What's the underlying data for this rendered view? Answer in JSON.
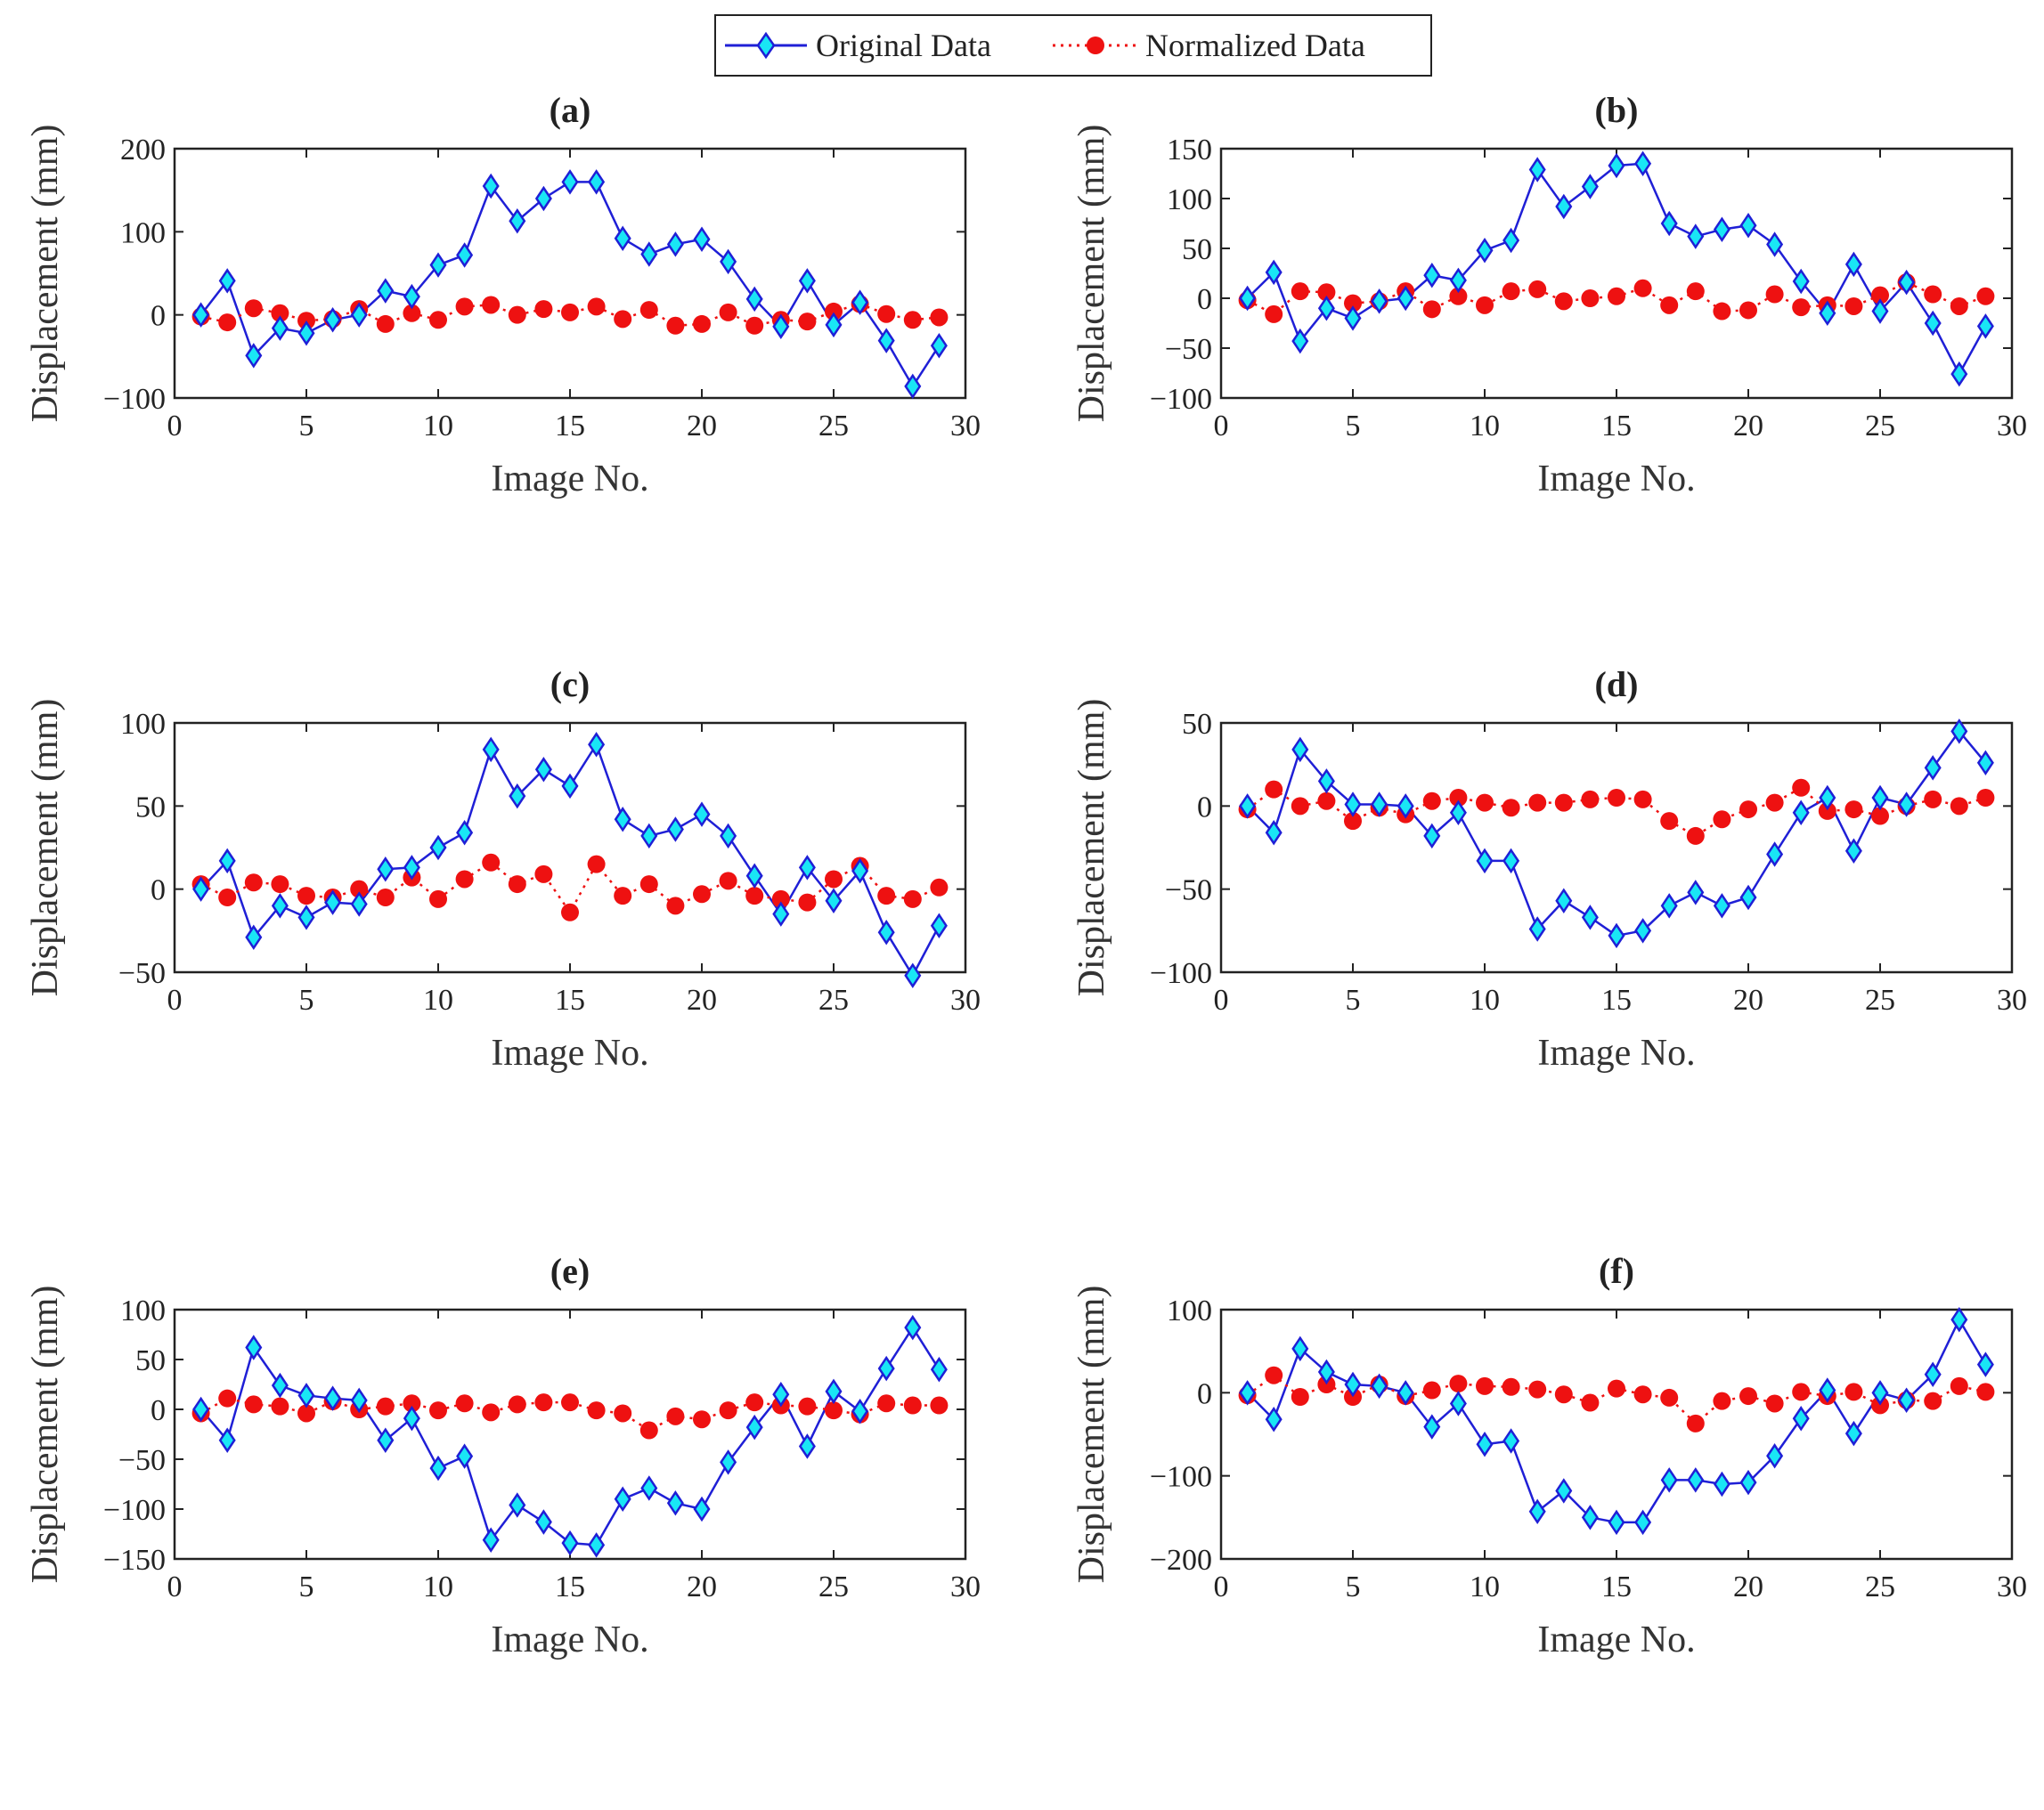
{
  "legend": {
    "original_label": "Original Data",
    "normalized_label": "Normalized Data"
  },
  "colors": {
    "original_line": "#1f1fd6",
    "original_marker_fill": "#19e6f5",
    "normalized": "#ee1111",
    "axis": "#222222"
  },
  "chart_data": [
    {
      "type": "line",
      "title": "(a)",
      "xlabel": "Image No.",
      "ylabel": "Displacement (mm)",
      "xlim": [
        0,
        30
      ],
      "ylim": [
        -100,
        200
      ],
      "xticks": [
        0,
        5,
        10,
        15,
        20,
        25,
        30
      ],
      "yticks": [
        -100,
        0,
        100,
        200
      ],
      "x": [
        1,
        2,
        3,
        4,
        5,
        6,
        7,
        8,
        9,
        10,
        11,
        12,
        13,
        14,
        15,
        16,
        17,
        18,
        19,
        20,
        21,
        22,
        23,
        24,
        25,
        26,
        27,
        28,
        29
      ],
      "series": [
        {
          "name": "Original Data",
          "values": [
            0,
            41,
            -49,
            -16,
            -22,
            -6,
            0,
            29,
            22,
            60,
            72,
            155,
            113,
            140,
            160,
            160,
            92,
            73,
            85,
            91,
            64,
            19,
            -14,
            41,
            -12,
            15,
            -31,
            -86,
            -37
          ]
        },
        {
          "name": "Normalized Data",
          "values": [
            -2,
            -9,
            8,
            2,
            -7,
            -5,
            7,
            -11,
            2,
            -6,
            10,
            12,
            0,
            7,
            3,
            10,
            -5,
            6,
            -13,
            -11,
            3,
            -13,
            -6,
            -8,
            4,
            13,
            1,
            -6,
            -3
          ]
        }
      ]
    },
    {
      "type": "line",
      "title": "(b)",
      "xlabel": "Image No.",
      "ylabel": "Displacement (mm)",
      "xlim": [
        0,
        30
      ],
      "ylim": [
        -100,
        150
      ],
      "xticks": [
        0,
        5,
        10,
        15,
        20,
        25,
        30
      ],
      "yticks": [
        -100,
        -50,
        0,
        50,
        100,
        150
      ],
      "x": [
        1,
        2,
        3,
        4,
        5,
        6,
        7,
        8,
        9,
        10,
        11,
        12,
        13,
        14,
        15,
        16,
        17,
        18,
        19,
        20,
        21,
        22,
        23,
        24,
        25,
        26,
        27,
        28,
        29
      ],
      "series": [
        {
          "name": "Original Data",
          "values": [
            0,
            26,
            -43,
            -10,
            -20,
            -3,
            0,
            23,
            18,
            48,
            58,
            129,
            92,
            112,
            133,
            135,
            75,
            62,
            69,
            73,
            54,
            17,
            -15,
            34,
            -13,
            16,
            -25,
            -76,
            -28
          ]
        },
        {
          "name": "Normalized Data",
          "values": [
            -2,
            -16,
            7,
            6,
            -5,
            -3,
            7,
            -11,
            2,
            -7,
            7,
            9,
            -3,
            0,
            2,
            10,
            -7,
            7,
            -13,
            -12,
            4,
            -9,
            -7,
            -8,
            3,
            16,
            4,
            -8,
            2
          ]
        }
      ]
    },
    {
      "type": "line",
      "title": "(c)",
      "xlabel": "Image No.",
      "ylabel": "Displacement (mm)",
      "xlim": [
        0,
        30
      ],
      "ylim": [
        -50,
        100
      ],
      "xticks": [
        0,
        5,
        10,
        15,
        20,
        25,
        30
      ],
      "yticks": [
        -50,
        0,
        50,
        100
      ],
      "x": [
        1,
        2,
        3,
        4,
        5,
        6,
        7,
        8,
        9,
        10,
        11,
        12,
        13,
        14,
        15,
        16,
        17,
        18,
        19,
        20,
        21,
        22,
        23,
        24,
        25,
        26,
        27,
        28,
        29
      ],
      "series": [
        {
          "name": "Original Data",
          "values": [
            0,
            17,
            -29,
            -10,
            -17,
            -8,
            -9,
            12,
            13,
            25,
            34,
            84,
            56,
            72,
            62,
            87,
            42,
            32,
            36,
            45,
            32,
            8,
            -15,
            13,
            -7,
            11,
            -26,
            -52,
            -22
          ]
        },
        {
          "name": "Normalized Data",
          "values": [
            3,
            -5,
            4,
            3,
            -4,
            -5,
            0,
            -5,
            7,
            -6,
            6,
            16,
            3,
            9,
            -14,
            15,
            -4,
            3,
            -10,
            -3,
            5,
            -4,
            -6,
            -8,
            6,
            14,
            -4,
            -6,
            1
          ]
        }
      ]
    },
    {
      "type": "line",
      "title": "(d)",
      "xlabel": "Image No.",
      "ylabel": "Displacement (mm)",
      "xlim": [
        0,
        30
      ],
      "ylim": [
        -100,
        50
      ],
      "xticks": [
        0,
        5,
        10,
        15,
        20,
        25,
        30
      ],
      "yticks": [
        -100,
        -50,
        0,
        50
      ],
      "x": [
        1,
        2,
        3,
        4,
        5,
        6,
        7,
        8,
        9,
        10,
        11,
        12,
        13,
        14,
        15,
        16,
        17,
        18,
        19,
        20,
        21,
        22,
        23,
        24,
        25,
        26,
        27,
        28,
        29
      ],
      "series": [
        {
          "name": "Original Data",
          "values": [
            0,
            -16,
            34,
            15,
            1,
            1,
            0,
            -18,
            -4,
            -33,
            -33,
            -74,
            -57,
            -67,
            -78,
            -75,
            -60,
            -52,
            -60,
            -55,
            -29,
            -4,
            5,
            -27,
            5,
            1,
            23,
            45,
            26
          ]
        },
        {
          "name": "Normalized Data",
          "values": [
            -2,
            10,
            0,
            3,
            -9,
            -1,
            -5,
            3,
            5,
            2,
            -1,
            2,
            2,
            4,
            5,
            4,
            -9,
            -18,
            -8,
            -2,
            2,
            11,
            -3,
            -2,
            -6,
            0,
            4,
            0,
            5
          ]
        }
      ]
    },
    {
      "type": "line",
      "title": "(e)",
      "xlabel": "Image No.",
      "ylabel": "Displacement (mm)",
      "xlim": [
        0,
        30
      ],
      "ylim": [
        -150,
        100
      ],
      "xticks": [
        0,
        5,
        10,
        15,
        20,
        25,
        30
      ],
      "yticks": [
        -150,
        -100,
        -50,
        0,
        50,
        100
      ],
      "x": [
        1,
        2,
        3,
        4,
        5,
        6,
        7,
        8,
        9,
        10,
        11,
        12,
        13,
        14,
        15,
        16,
        17,
        18,
        19,
        20,
        21,
        22,
        23,
        24,
        25,
        26,
        27,
        28,
        29
      ],
      "series": [
        {
          "name": "Original Data",
          "values": [
            0,
            -31,
            62,
            24,
            14,
            11,
            9,
            -31,
            -9,
            -59,
            -47,
            -131,
            -96,
            -113,
            -134,
            -136,
            -90,
            -79,
            -94,
            -100,
            -53,
            -18,
            15,
            -37,
            18,
            -2,
            41,
            82,
            40
          ]
        },
        {
          "name": "Normalized Data",
          "values": [
            -4,
            11,
            5,
            3,
            -4,
            8,
            0,
            3,
            6,
            -1,
            6,
            -3,
            5,
            7,
            7,
            -1,
            -4,
            -21,
            -7,
            -10,
            -1,
            7,
            4,
            3,
            -1,
            -5,
            6,
            4,
            4
          ]
        }
      ]
    },
    {
      "type": "line",
      "title": "(f)",
      "xlabel": "Image No.",
      "ylabel": "Displacement (mm)",
      "xlim": [
        0,
        30
      ],
      "ylim": [
        -200,
        100
      ],
      "xticks": [
        0,
        5,
        10,
        15,
        20,
        25,
        30
      ],
      "yticks": [
        -200,
        -100,
        0,
        100
      ],
      "x": [
        1,
        2,
        3,
        4,
        5,
        6,
        7,
        8,
        9,
        10,
        11,
        12,
        13,
        14,
        15,
        16,
        17,
        18,
        19,
        20,
        21,
        22,
        23,
        24,
        25,
        26,
        27,
        28,
        29
      ],
      "series": [
        {
          "name": "Original Data",
          "values": [
            0,
            -32,
            53,
            25,
            10,
            8,
            0,
            -41,
            -13,
            -62,
            -58,
            -143,
            -118,
            -150,
            -156,
            -156,
            -105,
            -105,
            -110,
            -108,
            -76,
            -31,
            3,
            -49,
            0,
            -9,
            22,
            88,
            34
          ]
        },
        {
          "name": "Normalized Data",
          "values": [
            -3,
            21,
            -5,
            10,
            -5,
            10,
            -4,
            3,
            11,
            8,
            7,
            4,
            -2,
            -12,
            5,
            -2,
            -6,
            -37,
            -10,
            -4,
            -13,
            1,
            -4,
            1,
            -15,
            -9,
            -10,
            8,
            1
          ]
        }
      ]
    }
  ]
}
